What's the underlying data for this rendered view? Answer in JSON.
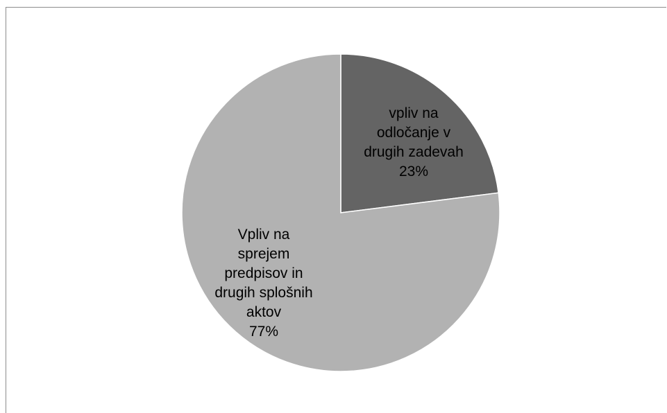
{
  "chart_data": {
    "type": "pie",
    "start_angle_deg": 0,
    "direction": "clockwise",
    "slices": [
      {
        "label_lines": [
          "vpliv na",
          "odločanje v",
          "drugih zadevah"
        ],
        "percent_label": "23%",
        "value": 23,
        "color": "#646464"
      },
      {
        "label_lines": [
          "Vpliv na",
          "sprejem",
          "predpisov in",
          "drugih splošnih",
          "aktov"
        ],
        "percent_label": "77%",
        "value": 77,
        "color": "#b2b2b2"
      }
    ]
  }
}
